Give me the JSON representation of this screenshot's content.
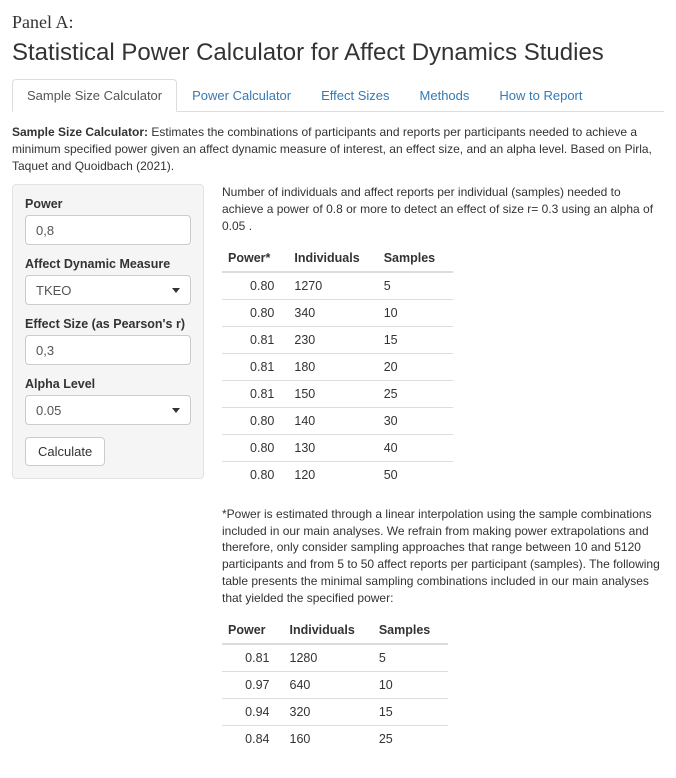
{
  "panel_label": "Panel A:",
  "title": "Statistical Power Calculator for Affect Dynamics Studies",
  "tabs": [
    {
      "label": "Sample Size Calculator",
      "active": true
    },
    {
      "label": "Power Calculator",
      "active": false
    },
    {
      "label": "Effect Sizes",
      "active": false
    },
    {
      "label": "Methods",
      "active": false
    },
    {
      "label": "How to Report",
      "active": false
    }
  ],
  "intro_bold": "Sample Size Calculator:",
  "intro_text": " Estimates the combinations of participants and reports per participants needed to achieve a minimum specified power given an affect dynamic measure of interest, an effect size, and an alpha level. Based on Pirla, Taquet and Quoidbach (2021).",
  "form": {
    "power_label": "Power",
    "power_value": "0,8",
    "measure_label": "Affect Dynamic Measure",
    "measure_value": "TKEO",
    "effect_label": "Effect Size (as Pearson's r)",
    "effect_value": "0,3",
    "alpha_label": "Alpha Level",
    "alpha_value": "0.05",
    "calc_button": "Calculate"
  },
  "results": {
    "intro": "Number of individuals and affect reports per individual (samples) needed to achieve a power of 0.8 or more to detect an effect of size r= 0.3 using an alpha of 0.05 .",
    "table1": {
      "headers": [
        "Power*",
        "Individuals",
        "Samples"
      ],
      "rows": [
        [
          "0.80",
          "1270",
          "5"
        ],
        [
          "0.80",
          "340",
          "10"
        ],
        [
          "0.81",
          "230",
          "15"
        ],
        [
          "0.81",
          "180",
          "20"
        ],
        [
          "0.81",
          "150",
          "25"
        ],
        [
          "0.80",
          "140",
          "30"
        ],
        [
          "0.80",
          "130",
          "40"
        ],
        [
          "0.80",
          "120",
          "50"
        ]
      ]
    },
    "footnote": "*Power is estimated through a linear interpolation using the sample combinations included in our main analyses. We refrain from making power extrapolations and therefore, only consider sampling approaches that range between 10 and 5120 participants and from 5 to 50 affect reports per participant (samples). The following table presents the minimal sampling combinations included in our main analyses that yielded the specified power:",
    "table2": {
      "headers": [
        "Power",
        "Individuals",
        "Samples"
      ],
      "rows": [
        [
          "0.81",
          "1280",
          "5"
        ],
        [
          "0.97",
          "640",
          "10"
        ],
        [
          "0.94",
          "320",
          "15"
        ],
        [
          "0.84",
          "160",
          "25"
        ]
      ]
    }
  }
}
